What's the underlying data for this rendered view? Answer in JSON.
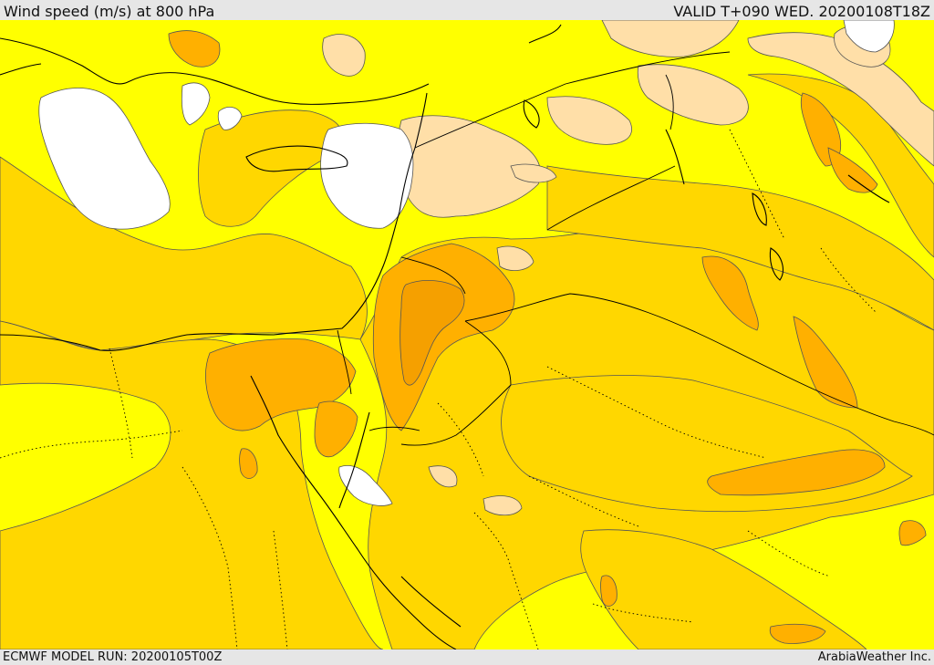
{
  "header": {
    "title": "Wind speed (m/s) at 800 hPa",
    "valid": "VALID T+090 WED. 20200108T18Z"
  },
  "footer": {
    "model_run": "ECMWF MODEL RUN: 20200105T00Z",
    "credit": "ArabiaWeather Inc."
  },
  "colors": {
    "speed_lowest": "#ffffff",
    "speed_low": "#ffff00",
    "speed_mid": "#ffd700",
    "speed_high": "#ffb000",
    "speed_higher": "#f5a000",
    "speed_pale": "#ffdfa8",
    "coastline": "#000000",
    "contour_line": "#555555"
  }
}
